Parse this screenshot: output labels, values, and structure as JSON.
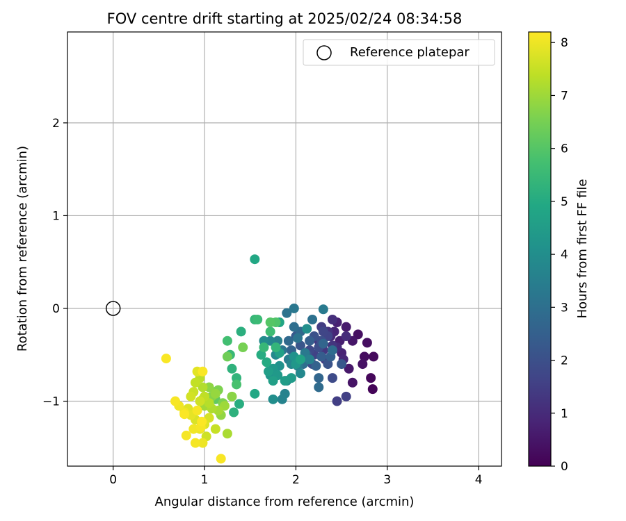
{
  "chart_data": {
    "type": "scatter",
    "title": "FOV centre drift starting at 2025/02/24 08:34:58",
    "xlabel": "Angular distance from reference (arcmin)",
    "ylabel": "Rotation from reference (arcmin)",
    "xlim": [
      -0.5,
      4.25
    ],
    "ylim": [
      -1.7,
      2.98
    ],
    "xticks": [
      0,
      1,
      2,
      3,
      4
    ],
    "yticks": [
      -1,
      0,
      1,
      2
    ],
    "grid": true,
    "legend": {
      "placement": "top-right",
      "entries": [
        "Reference platepar"
      ]
    },
    "reference_point": {
      "label": "Reference platepar",
      "x": 0,
      "y": 0
    },
    "colorbar": {
      "label": "Hours from first FF file",
      "range": [
        0,
        8.2
      ],
      "ticks": [
        0,
        1,
        2,
        3,
        4,
        5,
        6,
        7,
        8
      ],
      "colormap": "viridis"
    },
    "points": [
      [
        2.84,
        -0.87,
        0.1
      ],
      [
        2.82,
        -0.75,
        0.15
      ],
      [
        2.85,
        -0.52,
        0.2
      ],
      [
        2.75,
        -0.52,
        0.25
      ],
      [
        2.78,
        -0.37,
        0.3
      ],
      [
        2.68,
        -0.28,
        0.35
      ],
      [
        2.73,
        -0.6,
        0.4
      ],
      [
        2.62,
        -0.8,
        0.45
      ],
      [
        2.62,
        -0.35,
        0.5
      ],
      [
        2.58,
        -0.65,
        0.55
      ],
      [
        2.55,
        -0.2,
        0.6
      ],
      [
        2.48,
        -0.35,
        0.7
      ],
      [
        2.45,
        -0.15,
        0.75
      ],
      [
        2.5,
        -0.48,
        0.8
      ],
      [
        2.42,
        -0.25,
        0.85
      ],
      [
        2.52,
        -0.55,
        0.9
      ],
      [
        2.38,
        -0.3,
        0.95
      ],
      [
        2.45,
        -0.42,
        1.0
      ],
      [
        2.55,
        -0.3,
        1.05
      ],
      [
        2.4,
        -0.12,
        1.1
      ],
      [
        2.35,
        -0.25,
        1.2
      ],
      [
        2.4,
        -0.4,
        1.25
      ],
      [
        2.3,
        -0.45,
        1.3
      ],
      [
        2.25,
        -0.35,
        1.35
      ],
      [
        2.32,
        -0.55,
        1.4
      ],
      [
        2.28,
        -0.2,
        1.45
      ],
      [
        2.45,
        -1.0,
        1.5
      ],
      [
        2.55,
        -0.95,
        1.55
      ],
      [
        2.2,
        -0.5,
        1.6
      ],
      [
        2.35,
        -0.3,
        1.65
      ],
      [
        2.3,
        -0.25,
        1.7
      ],
      [
        2.15,
        -0.45,
        1.8
      ],
      [
        2.4,
        -0.75,
        1.85
      ],
      [
        2.25,
        -0.42,
        1.9
      ],
      [
        2.18,
        -0.6,
        1.95
      ],
      [
        2.28,
        -0.35,
        2.0
      ],
      [
        2.2,
        -0.3,
        2.05
      ],
      [
        2.35,
        -0.6,
        2.1
      ],
      [
        2.12,
        -0.5,
        2.15
      ],
      [
        2.05,
        -0.4,
        2.2
      ],
      [
        2.5,
        -0.6,
        2.25
      ],
      [
        2.0,
        -0.3,
        2.3
      ],
      [
        2.1,
        -0.55,
        2.35
      ],
      [
        2.28,
        -0.52,
        2.4
      ],
      [
        2.15,
        -0.35,
        2.45
      ],
      [
        2.38,
        -0.52,
        2.5
      ],
      [
        2.22,
        -0.62,
        2.55
      ],
      [
        1.95,
        -0.45,
        2.6
      ],
      [
        2.3,
        -0.38,
        2.65
      ],
      [
        2.25,
        -0.75,
        2.7
      ],
      [
        2.05,
        -0.25,
        2.75
      ],
      [
        1.92,
        -0.35,
        2.8
      ],
      [
        2.25,
        -0.85,
        2.85
      ],
      [
        2.4,
        -0.45,
        2.9
      ],
      [
        1.98,
        -0.2,
        2.95
      ],
      [
        2.08,
        -0.6,
        3.0
      ],
      [
        2.18,
        -0.12,
        3.05
      ],
      [
        1.9,
        -0.05,
        3.1
      ],
      [
        2.02,
        -0.32,
        3.15
      ],
      [
        1.85,
        -0.45,
        3.2
      ],
      [
        1.98,
        0.0,
        3.25
      ],
      [
        2.1,
        -0.48,
        3.3
      ],
      [
        2.3,
        -0.01,
        3.35
      ],
      [
        1.92,
        -0.55,
        3.4
      ],
      [
        2.02,
        -0.62,
        3.45
      ],
      [
        1.8,
        -0.35,
        3.5
      ],
      [
        2.15,
        -0.55,
        3.55
      ],
      [
        1.88,
        -0.92,
        3.6
      ],
      [
        1.85,
        -0.98,
        3.65
      ],
      [
        1.72,
        -0.35,
        3.7
      ],
      [
        1.95,
        -0.6,
        3.75
      ],
      [
        2.05,
        -0.7,
        3.8
      ],
      [
        1.78,
        -0.5,
        3.85
      ],
      [
        1.65,
        -0.35,
        3.9
      ],
      [
        1.9,
        -0.78,
        3.95
      ],
      [
        1.75,
        -0.98,
        4.0
      ],
      [
        2.12,
        -0.22,
        4.05
      ],
      [
        1.82,
        -0.62,
        4.1
      ],
      [
        1.98,
        -0.52,
        4.15
      ],
      [
        1.72,
        -0.72,
        4.2
      ],
      [
        2.0,
        -0.6,
        4.3
      ],
      [
        1.75,
        -0.65,
        4.35
      ],
      [
        1.8,
        -0.72,
        4.4
      ],
      [
        1.95,
        -0.75,
        4.45
      ],
      [
        1.88,
        -0.78,
        4.5
      ],
      [
        1.7,
        -0.68,
        4.55
      ],
      [
        1.75,
        -0.78,
        4.6
      ],
      [
        1.82,
        -0.48,
        4.65
      ],
      [
        2.05,
        -0.55,
        4.7
      ],
      [
        1.82,
        -0.15,
        4.8
      ],
      [
        1.55,
        -0.92,
        4.9
      ],
      [
        1.68,
        -0.58,
        5.0
      ],
      [
        1.55,
        0.53,
        4.9
      ],
      [
        1.62,
        -0.5,
        5.05
      ],
      [
        1.38,
        -1.03,
        5.1
      ],
      [
        1.4,
        -0.25,
        5.15
      ],
      [
        1.32,
        -1.12,
        5.2
      ],
      [
        1.3,
        -0.65,
        5.25
      ],
      [
        1.35,
        -0.75,
        5.3
      ],
      [
        1.78,
        -0.42,
        5.35
      ],
      [
        1.55,
        -0.12,
        5.4
      ],
      [
        1.65,
        -0.42,
        5.45
      ],
      [
        1.28,
        -0.5,
        5.5
      ],
      [
        1.58,
        -0.12,
        5.55
      ],
      [
        1.72,
        -0.25,
        5.6
      ],
      [
        1.25,
        -0.35,
        5.7
      ],
      [
        1.12,
        -0.9,
        5.75
      ],
      [
        1.35,
        -0.82,
        5.8
      ],
      [
        1.78,
        -0.15,
        5.9
      ],
      [
        1.72,
        -0.15,
        6.0
      ],
      [
        1.12,
        -0.98,
        6.2
      ],
      [
        1.25,
        -0.52,
        6.4
      ],
      [
        1.42,
        -0.42,
        6.5
      ],
      [
        1.2,
        -1.02,
        6.6
      ],
      [
        1.15,
        -0.88,
        6.6
      ],
      [
        1.08,
        -0.95,
        6.7
      ],
      [
        1.3,
        -0.95,
        6.75
      ],
      [
        1.05,
        -0.85,
        6.8
      ],
      [
        1.18,
        -1.15,
        6.85
      ],
      [
        1.12,
        -0.92,
        6.9
      ],
      [
        0.98,
        -0.98,
        6.95
      ],
      [
        1.22,
        -1.05,
        7.0
      ],
      [
        1.0,
        -1.05,
        7.05
      ],
      [
        1.15,
        -1.1,
        7.1
      ],
      [
        1.25,
        -1.35,
        7.15
      ],
      [
        1.08,
        -1.08,
        7.2
      ],
      [
        0.98,
        -0.85,
        7.25
      ],
      [
        1.05,
        -1.02,
        7.3
      ],
      [
        0.95,
        -0.75,
        7.35
      ],
      [
        1.0,
        -0.95,
        7.4
      ],
      [
        0.9,
        -0.8,
        7.45
      ],
      [
        1.12,
        -1.3,
        7.5
      ],
      [
        0.88,
        -0.9,
        7.55
      ],
      [
        1.02,
        -1.38,
        7.6
      ],
      [
        0.95,
        -1.0,
        7.6
      ],
      [
        0.85,
        -0.95,
        7.65
      ],
      [
        1.05,
        -1.18,
        7.7
      ],
      [
        0.9,
        -1.2,
        7.75
      ],
      [
        1.0,
        -1.25,
        7.8
      ],
      [
        0.82,
        -1.08,
        7.8
      ],
      [
        0.92,
        -0.68,
        7.85
      ],
      [
        0.85,
        -1.15,
        7.9
      ],
      [
        0.95,
        -1.3,
        7.95
      ],
      [
        0.78,
        -1.12,
        8.0
      ],
      [
        0.98,
        -1.45,
        8.0
      ],
      [
        0.72,
        -1.05,
        8.05
      ],
      [
        0.88,
        -1.3,
        8.05
      ],
      [
        0.96,
        -1.28,
        8.1
      ],
      [
        0.9,
        -1.45,
        8.1
      ],
      [
        0.8,
        -1.37,
        8.1
      ],
      [
        0.68,
        -1.0,
        8.12
      ],
      [
        0.92,
        -1.1,
        8.12
      ],
      [
        1.18,
        -1.62,
        8.14
      ],
      [
        0.58,
        -0.54,
        8.15
      ],
      [
        0.98,
        -0.68,
        8.15
      ],
      [
        0.78,
        -1.14,
        8.16
      ],
      [
        0.97,
        -1.22,
        8.17
      ]
    ]
  }
}
